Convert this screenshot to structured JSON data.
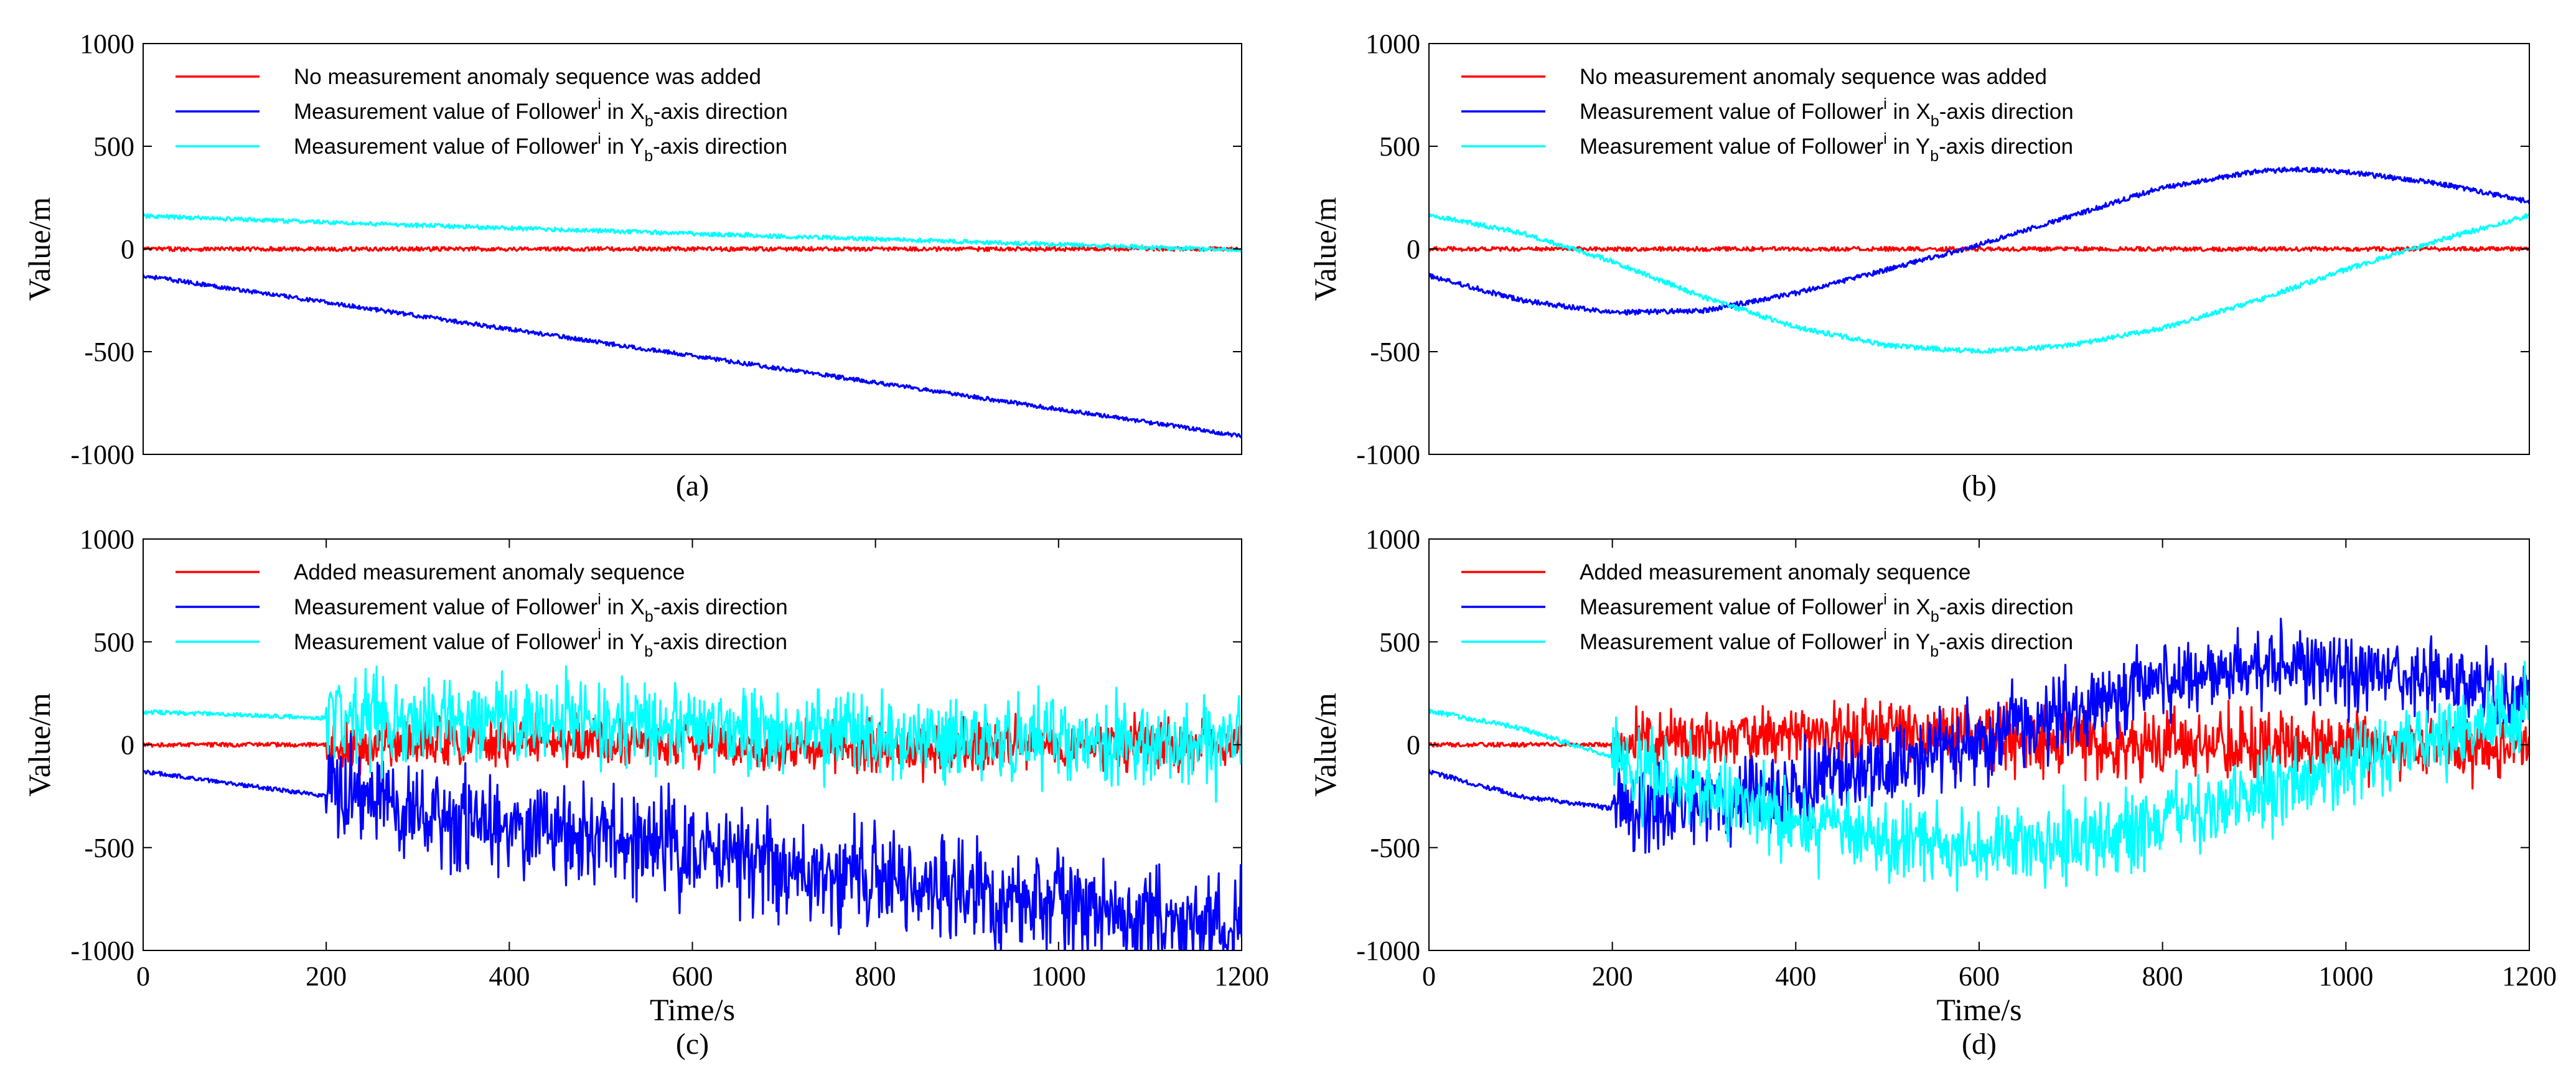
{
  "figure": {
    "title": ""
  },
  "colors": {
    "red": "#ff0000",
    "blue": "#0000ff",
    "cyan": "#00ffff",
    "axis": "#000000"
  },
  "chart_data": [
    {
      "id": "a",
      "type": "line",
      "caption": "(a)",
      "title": "",
      "xlabel": "",
      "ylabel": "Value/m",
      "xlim": [
        0,
        1200
      ],
      "ylim": [
        -1000,
        1000
      ],
      "show_x_ticks": false,
      "x_ticks": [],
      "y_ticks": [
        {
          "value": 1000,
          "label": "1000"
        },
        {
          "value": 500,
          "label": "500"
        },
        {
          "value": 0,
          "label": "0"
        },
        {
          "value": -500,
          "label": "-500"
        },
        {
          "value": -1000,
          "label": "-1000"
        }
      ],
      "legend": {
        "location": "top-left",
        "entries": [
          {
            "color": "red",
            "text": "No measurement anomaly sequence was added"
          },
          {
            "color": "blue",
            "text": "Measurement value of Follower",
            "sup": "i",
            "mid": " in X",
            "sub": "b",
            "tail": "-axis direction"
          },
          {
            "color": "cyan",
            "text": "Measurement value of Follower",
            "sup": "i",
            "mid": " in Y",
            "sub": "b",
            "tail": "-axis direction"
          }
        ]
      },
      "series": [
        {
          "name": "No measurement anomaly sequence was added",
          "color": "red",
          "x": [
            0,
            1200
          ],
          "y": [
            0,
            0
          ],
          "noise": 10,
          "anomaly_start": null
        },
        {
          "name": "Measurement value of Follower i in Xb-axis direction",
          "color": "blue",
          "x": [
            0,
            300,
            600,
            900,
            1200
          ],
          "y": [
            -130,
            -325,
            -520,
            -715,
            -910
          ],
          "noise": 10,
          "anomaly_start": null
        },
        {
          "name": "Measurement value of Follower i in Yb-axis direction",
          "color": "cyan",
          "x": [
            0,
            300,
            600,
            900,
            1200
          ],
          "y": [
            160,
            115,
            75,
            35,
            -5
          ],
          "noise": 10,
          "anomaly_start": null
        }
      ]
    },
    {
      "id": "b",
      "type": "line",
      "caption": "(b)",
      "title": "",
      "xlabel": "",
      "ylabel": "Value/m",
      "xlim": [
        0,
        1200
      ],
      "ylim": [
        -1000,
        1000
      ],
      "show_x_ticks": false,
      "x_ticks": [],
      "y_ticks": [
        {
          "value": 1000,
          "label": "1000"
        },
        {
          "value": 500,
          "label": "500"
        },
        {
          "value": 0,
          "label": "0"
        },
        {
          "value": -500,
          "label": "-500"
        },
        {
          "value": -1000,
          "label": "-1000"
        }
      ],
      "legend": {
        "location": "top-left",
        "entries": [
          {
            "color": "red",
            "text": "No measurement anomaly sequence was added"
          },
          {
            "color": "blue",
            "text": "Measurement value of Follower",
            "sup": "i",
            "mid": " in X",
            "sub": "b",
            "tail": "-axis direction"
          },
          {
            "color": "cyan",
            "text": "Measurement value of Follower",
            "sup": "i",
            "mid": " in Y",
            "sub": "b",
            "tail": "-axis direction"
          }
        ]
      },
      "series": [
        {
          "name": "No measurement anomaly sequence was added",
          "color": "red",
          "x": [
            0,
            1200
          ],
          "y": [
            0,
            0
          ],
          "noise": 10,
          "anomaly_start": null
        },
        {
          "name": "Measurement value of Follower i in Xb-axis direction",
          "color": "blue",
          "x": [
            0,
            100,
            200,
            300,
            400,
            500,
            600,
            700,
            800,
            900,
            950,
            1000,
            1100,
            1200
          ],
          "y": [
            -130,
            -250,
            -310,
            -300,
            -215,
            -100,
            20,
            160,
            300,
            375,
            390,
            375,
            320,
            230
          ],
          "noise": 12,
          "anomaly_start": null
        },
        {
          "name": "Measurement value of Follower i in Yb-axis direction",
          "color": "cyan",
          "x": [
            0,
            100,
            200,
            300,
            400,
            500,
            600,
            700,
            800,
            900,
            1000,
            1100,
            1200
          ],
          "y": [
            165,
            80,
            -60,
            -235,
            -380,
            -470,
            -500,
            -470,
            -385,
            -255,
            -100,
            40,
            165
          ],
          "noise": 12,
          "anomaly_start": null
        }
      ]
    },
    {
      "id": "c",
      "type": "line",
      "caption": "(c)",
      "title": "",
      "xlabel": "Time/s",
      "ylabel": "Value/m",
      "xlim": [
        0,
        1200
      ],
      "ylim": [
        -1000,
        1000
      ],
      "show_x_ticks": true,
      "x_ticks": [
        {
          "value": 0,
          "label": "0"
        },
        {
          "value": 200,
          "label": "200"
        },
        {
          "value": 400,
          "label": "400"
        },
        {
          "value": 600,
          "label": "600"
        },
        {
          "value": 800,
          "label": "800"
        },
        {
          "value": 1000,
          "label": "1000"
        },
        {
          "value": 1200,
          "label": "1200"
        }
      ],
      "y_ticks": [
        {
          "value": 1000,
          "label": "1000"
        },
        {
          "value": 500,
          "label": "500"
        },
        {
          "value": 0,
          "label": "0"
        },
        {
          "value": -500,
          "label": "-500"
        },
        {
          "value": -1000,
          "label": "-1000"
        }
      ],
      "legend": {
        "location": "top-left",
        "entries": [
          {
            "color": "red",
            "text": "Added measurement anomaly sequence"
          },
          {
            "color": "blue",
            "text": "Measurement value of Follower",
            "sup": "i",
            "mid": " in X",
            "sub": "b",
            "tail": "-axis direction"
          },
          {
            "color": "cyan",
            "text": "Measurement value of Follower",
            "sup": "i",
            "mid": " in Y",
            "sub": "b",
            "tail": "-axis direction"
          }
        ]
      },
      "series": [
        {
          "name": "Added measurement anomaly sequence",
          "color": "red",
          "x": [
            0,
            200,
            400,
            600,
            800,
            1000,
            1200
          ],
          "y": [
            0,
            0,
            20,
            0,
            -20,
            0,
            0
          ],
          "noise": 10,
          "anomaly_start": 200,
          "anomaly_amplitude": 90
        },
        {
          "name": "Measurement value of Follower i in Xb-axis direction",
          "color": "blue",
          "x": [
            0,
            200,
            400,
            600,
            800,
            1000,
            1200
          ],
          "y": [
            -130,
            -250,
            -390,
            -520,
            -650,
            -780,
            -900
          ],
          "noise": 10,
          "anomaly_start": 200,
          "anomaly_amplitude": 190
        },
        {
          "name": "Measurement value of Follower i in Yb-axis direction",
          "color": "cyan",
          "x": [
            0,
            200,
            400,
            600,
            800,
            1000,
            1200
          ],
          "y": [
            160,
            130,
            120,
            80,
            40,
            20,
            0
          ],
          "noise": 10,
          "anomaly_start": 200,
          "anomaly_amplitude": 160
        }
      ]
    },
    {
      "id": "d",
      "type": "line",
      "caption": "(d)",
      "title": "",
      "xlabel": "Time/s",
      "ylabel": "Value/m",
      "xlim": [
        0,
        1200
      ],
      "ylim": [
        -1000,
        1000
      ],
      "show_x_ticks": true,
      "x_ticks": [
        {
          "value": 0,
          "label": "0"
        },
        {
          "value": 200,
          "label": "200"
        },
        {
          "value": 400,
          "label": "400"
        },
        {
          "value": 600,
          "label": "600"
        },
        {
          "value": 800,
          "label": "800"
        },
        {
          "value": 1000,
          "label": "1000"
        },
        {
          "value": 1200,
          "label": "1200"
        }
      ],
      "y_ticks": [
        {
          "value": 1000,
          "label": "1000"
        },
        {
          "value": 500,
          "label": "500"
        },
        {
          "value": 0,
          "label": "0"
        },
        {
          "value": -500,
          "label": "-500"
        },
        {
          "value": -1000,
          "label": "-1000"
        }
      ],
      "legend": {
        "location": "top-left",
        "entries": [
          {
            "color": "red",
            "text": "Added measurement anomaly sequence"
          },
          {
            "color": "blue",
            "text": "Measurement value of Follower",
            "sup": "i",
            "mid": " in X",
            "sub": "b",
            "tail": "-axis direction"
          },
          {
            "color": "cyan",
            "text": "Measurement value of Follower",
            "sup": "i",
            "mid": " in Y",
            "sub": "b",
            "tail": "-axis direction"
          }
        ]
      },
      "series": [
        {
          "name": "Added measurement anomaly sequence",
          "color": "red",
          "x": [
            0,
            200,
            400,
            600,
            800,
            1000,
            1200
          ],
          "y": [
            0,
            0,
            60,
            40,
            0,
            0,
            -20
          ],
          "noise": 10,
          "anomaly_start": 200,
          "anomaly_amplitude": 120
        },
        {
          "name": "Measurement value of Follower i in Xb-axis direction",
          "color": "blue",
          "x": [
            0,
            100,
            200,
            300,
            400,
            500,
            600,
            700,
            800,
            900,
            1000,
            1100,
            1200
          ],
          "y": [
            -130,
            -250,
            -310,
            -300,
            -215,
            -100,
            20,
            160,
            300,
            375,
            375,
            320,
            230
          ],
          "noise": 12,
          "anomaly_start": 200,
          "anomaly_amplitude": 150
        },
        {
          "name": "Measurement value of Follower i in Yb-axis direction",
          "color": "cyan",
          "x": [
            0,
            100,
            200,
            300,
            400,
            500,
            600,
            700,
            800,
            900,
            1000,
            1100,
            1200
          ],
          "y": [
            165,
            80,
            -60,
            -235,
            -380,
            -470,
            -500,
            -470,
            -385,
            -255,
            -100,
            40,
            165
          ],
          "noise": 12,
          "anomaly_start": 200,
          "anomaly_amplitude": 150
        }
      ]
    }
  ]
}
